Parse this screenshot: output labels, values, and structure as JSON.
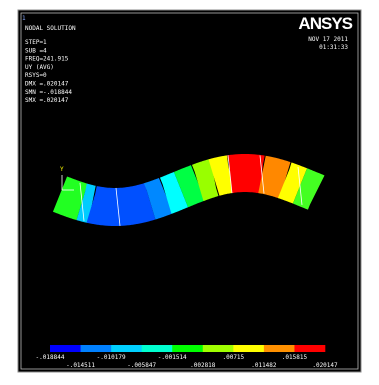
{
  "window_number": "1",
  "info": [
    "NODAL SOLUTION",
    "STEP=1",
    "SUB =4",
    "FREQ=241.915",
    "UY       (AVG)",
    "RSYS=0",
    "DMX =.020147",
    "SMN =-.018844",
    "SMX =.020147"
  ],
  "logo": "ANSYS",
  "date": "NOV 17 2011",
  "time": "01:31:33",
  "axis_label": "Y",
  "legend": {
    "upper_labels": [
      "-.018844",
      "-.010179",
      "-.001514",
      ".00715",
      ".015815"
    ],
    "lower_labels": [
      "-.014511",
      "-.005847",
      ".002818",
      ".011482",
      ".020147"
    ]
  }
}
